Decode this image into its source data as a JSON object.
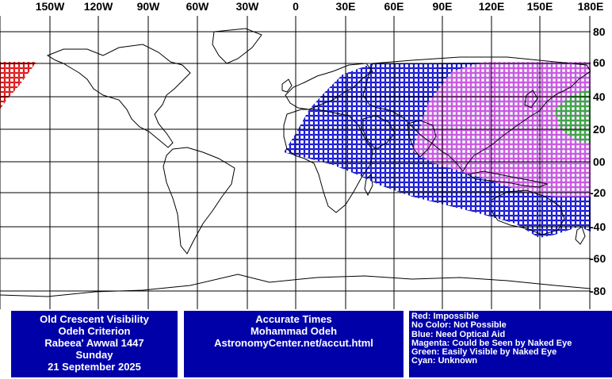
{
  "longitude_labels": [
    "150W",
    "120W",
    "90W",
    "60W",
    "30W",
    "0",
    "30E",
    "60E",
    "90E",
    "120E",
    "150E",
    "180E"
  ],
  "latitude_labels": [
    "80",
    "60",
    "40",
    "20",
    "00",
    "-20",
    "-40",
    "-60",
    "-80"
  ],
  "colors": {
    "impossible": "#dd0000",
    "need_optical_aid": "#0000cc",
    "naked_eye_possible": "#e060e0",
    "easily_visible": "#30b030",
    "panel": "#0000a8"
  },
  "info_panel": {
    "lines": [
      "Old Crescent Visibility",
      "Odeh Criterion",
      "Rabeea' Awwal 1447",
      "Sunday",
      "21 September 2025"
    ]
  },
  "credit_panel": {
    "lines": [
      "Accurate Times",
      "Mohammad Odeh",
      "AstronomyCenter.net/accut.html"
    ]
  },
  "legend": {
    "lines": [
      "Red: Impossible",
      "No Color: Not Possible",
      "Blue: Need Optical Aid",
      "Magenta: Could be Seen by Naked Eye",
      "Green: Easily Visible by Naked Eye",
      "Cyan: Unknown"
    ]
  }
}
